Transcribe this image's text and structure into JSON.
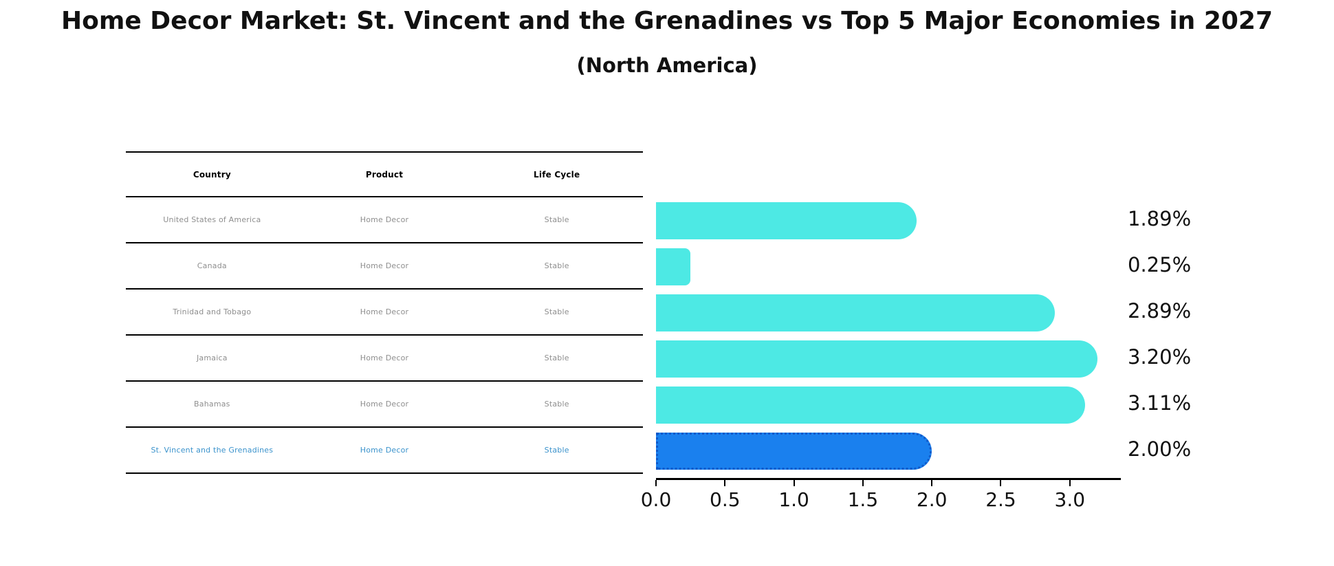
{
  "title": "Home Decor Market: St. Vincent and the Grenadines vs Top 5 Major Economies in 2027",
  "subtitle": "(North America)",
  "table": {
    "headers": [
      "Country",
      "Product",
      "Life Cycle"
    ],
    "rows": [
      {
        "country": "United States of America",
        "product": "Home Decor",
        "life_cycle": "Stable",
        "highlighted": false
      },
      {
        "country": "Canada",
        "product": "Home Decor",
        "life_cycle": "Stable",
        "highlighted": false
      },
      {
        "country": "Trinidad and Tobago",
        "product": "Home Decor",
        "life_cycle": "Stable",
        "highlighted": false
      },
      {
        "country": "Jamaica",
        "product": "Home Decor",
        "life_cycle": "Stable",
        "highlighted": false
      },
      {
        "country": "Bahamas",
        "product": "Home Decor",
        "life_cycle": "Stable",
        "highlighted": false
      },
      {
        "country": "St. Vincent and the Grenadines",
        "product": "Home Decor",
        "life_cycle": "Stable",
        "highlighted": true
      }
    ]
  },
  "chart_data": {
    "type": "bar",
    "orientation": "horizontal",
    "title": "Home Decor Market: St. Vincent and the Grenadines vs Top 5 Major Economies in 2027 (North America)",
    "categories": [
      "United States of America",
      "Canada",
      "Trinidad and Tobago",
      "Jamaica",
      "Bahamas",
      "St. Vincent and the Grenadines"
    ],
    "values": [
      1.89,
      0.25,
      2.89,
      3.2,
      3.11,
      2.0
    ],
    "value_labels": [
      "1.89%",
      "0.25%",
      "2.89%",
      "3.20%",
      "3.11%",
      "2.00%"
    ],
    "x_ticks": [
      0.0,
      0.5,
      1.0,
      1.5,
      2.0,
      2.5,
      3.0
    ],
    "x_tick_labels": [
      "0.0",
      "0.5",
      "1.0",
      "1.5",
      "2.0",
      "2.5",
      "3.0"
    ],
    "xlim": [
      0,
      3.37
    ],
    "grid": false,
    "legend": false,
    "highlight_index": 5,
    "colors": {
      "bar": "#4de9e4",
      "highlight_fill": "#1a80ee",
      "highlight_border": "#1059c9",
      "axis": "#000000",
      "highlight_text": "#3b93cc",
      "table_text": "#8e8e8e"
    }
  }
}
